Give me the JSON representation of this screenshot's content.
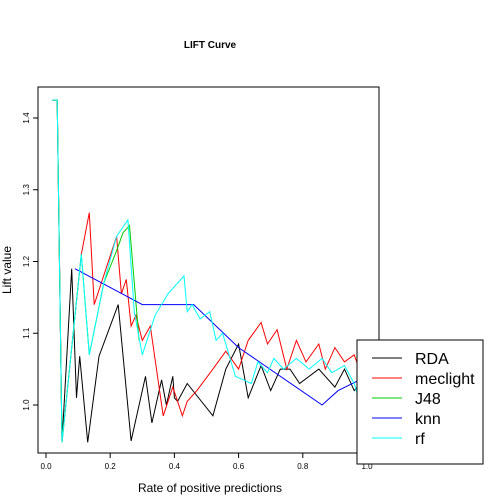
{
  "chart_data": {
    "type": "line",
    "title": "LIFT Curve",
    "xlabel": "Rate of positive predictions",
    "ylabel": "Lift value",
    "xlim": [
      0.0,
      1.0
    ],
    "ylim": [
      0.93,
      1.45
    ],
    "x_ticks": [
      0.0,
      0.2,
      0.4,
      0.6,
      0.8,
      1.0
    ],
    "x_tick_labels": [
      "0.0",
      "0.2",
      "0.4",
      "0.6",
      "0.8",
      "1.0"
    ],
    "y_ticks": [
      1.0,
      1.1,
      1.2,
      1.3,
      1.4
    ],
    "y_tick_labels": [
      "1.0",
      "1.1",
      "1.2",
      "1.3",
      "1.4"
    ],
    "grid": false,
    "legend_position": "bottom-right",
    "series": [
      {
        "name": "RDA",
        "color": "#000000",
        "x": [
          0.02,
          0.035,
          0.05,
          0.08,
          0.095,
          0.105,
          0.13,
          0.165,
          0.225,
          0.265,
          0.31,
          0.33,
          0.36,
          0.375,
          0.395,
          0.4,
          0.41,
          0.44,
          0.52,
          0.56,
          0.6,
          0.63,
          0.67,
          0.7,
          0.73,
          0.76,
          0.79,
          0.85,
          0.9,
          0.93,
          0.96,
          0.98,
          1.0
        ],
        "y": [
          1.425,
          1.425,
          0.948,
          1.19,
          1.01,
          1.068,
          0.948,
          1.068,
          1.14,
          0.95,
          1.04,
          0.975,
          1.035,
          1.0,
          1.04,
          1.01,
          1.005,
          1.03,
          0.985,
          1.05,
          1.085,
          1.01,
          1.055,
          1.02,
          1.05,
          1.05,
          1.03,
          1.05,
          1.025,
          1.05,
          1.02,
          1.03,
          1.03
        ]
      },
      {
        "name": "meclight",
        "color": "#ff0000",
        "x": [
          0.02,
          0.035,
          0.05,
          0.11,
          0.135,
          0.15,
          0.22,
          0.235,
          0.25,
          0.265,
          0.28,
          0.3,
          0.325,
          0.365,
          0.395,
          0.425,
          0.44,
          0.47,
          0.52,
          0.56,
          0.6,
          0.63,
          0.67,
          0.69,
          0.72,
          0.75,
          0.78,
          0.81,
          0.85,
          0.87,
          0.9,
          0.93,
          0.96,
          1.0
        ],
        "y": [
          1.425,
          1.425,
          0.948,
          1.21,
          1.268,
          1.14,
          1.235,
          1.155,
          1.175,
          1.11,
          1.125,
          1.09,
          1.11,
          0.985,
          1.025,
          0.985,
          1.005,
          1.02,
          1.05,
          1.075,
          1.05,
          1.09,
          1.115,
          1.085,
          1.105,
          1.05,
          1.09,
          1.06,
          1.085,
          1.05,
          1.08,
          1.06,
          1.07,
          1.02
        ]
      },
      {
        "name": "J48",
        "color": "#00cd00",
        "x": [
          0.02,
          0.035,
          0.05,
          0.11,
          0.135,
          0.18,
          0.22,
          0.24,
          0.26,
          0.29
        ],
        "y": [
          1.425,
          1.425,
          0.948,
          1.21,
          1.07,
          1.17,
          1.215,
          1.24,
          1.25,
          1.09
        ]
      },
      {
        "name": "knn",
        "color": "#0000ff",
        "x": [
          0.09,
          0.3,
          0.46,
          0.6,
          0.86,
          0.91,
          1.0
        ],
        "y": [
          1.19,
          1.14,
          1.14,
          1.08,
          1.0,
          1.02,
          1.04
        ]
      },
      {
        "name": "rf",
        "color": "#00ffff",
        "x": [
          0.02,
          0.035,
          0.05,
          0.11,
          0.135,
          0.18,
          0.22,
          0.255,
          0.275,
          0.3,
          0.34,
          0.38,
          0.43,
          0.44,
          0.455,
          0.48,
          0.51,
          0.53,
          0.55,
          0.59,
          0.64,
          0.66,
          0.69,
          0.71,
          0.74,
          0.78,
          0.82,
          0.86,
          0.89,
          0.93,
          0.96,
          0.98,
          1.0
        ],
        "y": [
          1.425,
          1.425,
          0.948,
          1.21,
          1.07,
          1.17,
          1.235,
          1.258,
          1.13,
          1.07,
          1.125,
          1.155,
          1.18,
          1.13,
          1.14,
          1.12,
          1.13,
          1.09,
          1.1,
          1.04,
          1.03,
          1.06,
          1.045,
          1.065,
          1.05,
          1.065,
          1.05,
          1.065,
          1.045,
          1.055,
          1.03,
          1.0,
          1.0
        ]
      }
    ]
  }
}
